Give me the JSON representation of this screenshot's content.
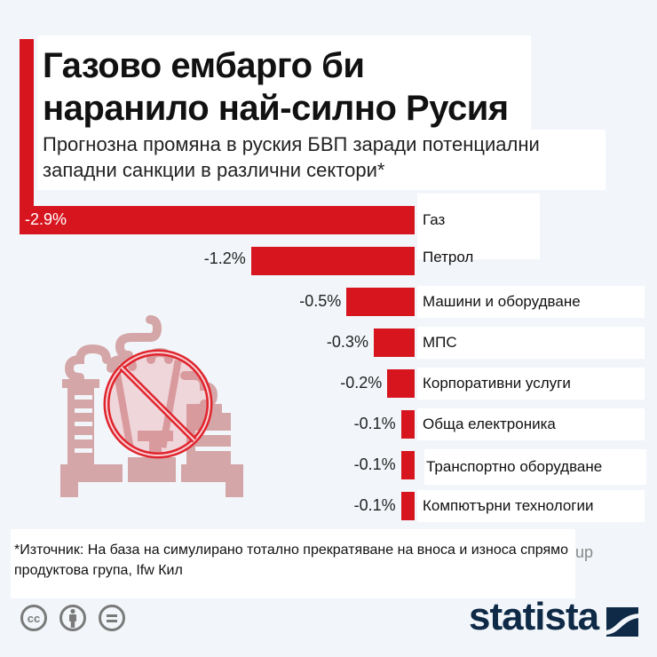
{
  "header": {
    "title": "Газово ембарго би наранило най-силно Русия",
    "subtitle": "Прогнозна промяна в руския БВП заради потенциални западни санкции в различни сектори*"
  },
  "colors": {
    "accent": "#d6151f",
    "bar": "#d6151f",
    "background": "#f2f6fa",
    "brand": "#0f2a47",
    "icon": "#d4a6a8",
    "footer_icons": "#7a7a7a"
  },
  "chart_data": {
    "type": "bar",
    "orientation": "horizontal",
    "title": "Газово ембарго би наранило най-силно Русия",
    "subtitle": "Прогнозна промяна в руския БВП заради потенциални западни санкции в различни сектори*",
    "xlabel": "",
    "ylabel": "",
    "unit": "%",
    "xlim": [
      -2.9,
      0
    ],
    "grid": false,
    "categories": [
      "Газ",
      "Петрол",
      "Машини и оборудване",
      "МПС",
      "Корпоративни услуги",
      "Обща електроника",
      "Транспортно оборудване",
      "Компютърни технологии"
    ],
    "values": [
      -2.9,
      -1.2,
      -0.5,
      -0.3,
      -0.2,
      -0.1,
      -0.1,
      -0.1
    ],
    "labels": [
      "-2.9%",
      "-1.2%",
      "-0.5%",
      "-0.3%",
      "-0.2%",
      "-0.1%",
      "-0.1%",
      "-0.1%"
    ]
  },
  "illustration": {
    "icon": "no-oil-rig-icon"
  },
  "footer": {
    "source": "*Източник: На база на симулирано тотално прекратяване на вноса и износа спрямо продуктова група, Ifw Кил",
    "ghost_text": "up",
    "license_icons": [
      "creative-commons-icon",
      "attribution-icon",
      "no-derivatives-icon"
    ],
    "brand": "statista"
  }
}
